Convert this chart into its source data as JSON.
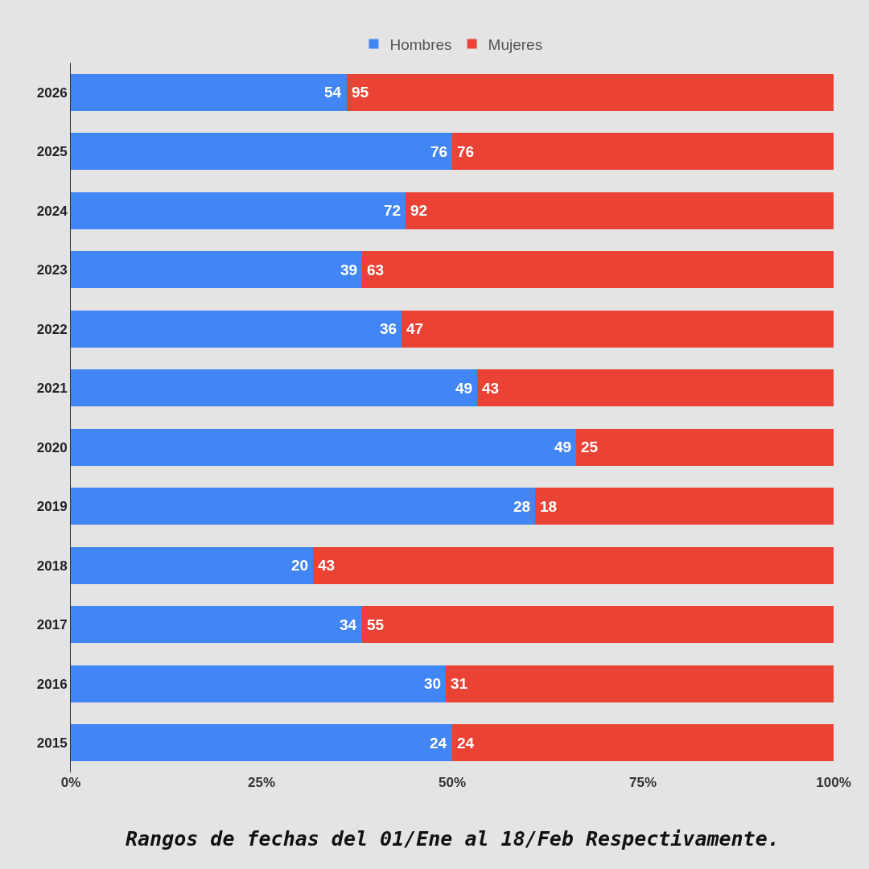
{
  "chart_data": {
    "type": "bar",
    "orientation": "horizontal",
    "stacked": true,
    "categories": [
      "2026",
      "2025",
      "2024",
      "2023",
      "2022",
      "2021",
      "2020",
      "2019",
      "2018",
      "2017",
      "2016",
      "2015"
    ],
    "series": [
      {
        "name": "Hombres",
        "color": "#4285f4",
        "values": [
          36.2,
          50,
          43.9,
          38.2,
          43.4,
          53.3,
          66.2,
          60.9,
          31.7,
          38.2,
          49.2,
          50
        ]
      },
      {
        "name": "Mujeres",
        "color": "#ea4335",
        "values": [
          63.8,
          50,
          56.1,
          61.8,
          56.6,
          46.7,
          33.8,
          39.1,
          68.3,
          61.8,
          50.8,
          50
        ]
      }
    ],
    "xlim": [
      0,
      100
    ],
    "xticks": [
      {
        "value": 0,
        "label": "0%"
      },
      {
        "value": 25,
        "label": "25%"
      },
      {
        "value": 50,
        "label": "50%"
      },
      {
        "value": 75,
        "label": "75%"
      },
      {
        "value": 100,
        "label": "100%"
      }
    ],
    "grid": false,
    "legend": "top",
    "annotations": [
      {
        "text": "54",
        "x": 36.2,
        "y": "2026"
      },
      {
        "text": "95",
        "x": 36.2,
        "y": "2026"
      },
      {
        "text": "76",
        "x": 50,
        "y": "2025"
      },
      {
        "text": "76",
        "x": 50,
        "y": "2025"
      },
      {
        "text": "72",
        "x": 43.9,
        "y": "2024"
      },
      {
        "text": "92",
        "x": 43.9,
        "y": "2024"
      },
      {
        "text": "39",
        "x": 38.2,
        "y": "2023"
      },
      {
        "text": "63",
        "x": 38.2,
        "y": "2023"
      },
      {
        "text": "36",
        "x": 43.4,
        "y": "2022"
      },
      {
        "text": "47",
        "x": 43.4,
        "y": "2022"
      },
      {
        "text": "49",
        "x": 53.3,
        "y": "2021"
      },
      {
        "text": "43",
        "x": 53.3,
        "y": "2021"
      },
      {
        "text": "49",
        "x": 66.2,
        "y": "2020"
      },
      {
        "text": "25",
        "x": 66.2,
        "y": "2020"
      },
      {
        "text": "28",
        "x": 60.9,
        "y": "2019"
      },
      {
        "text": "18",
        "x": 60.9,
        "y": "2019"
      },
      {
        "text": "20",
        "x": 31.7,
        "y": "2018"
      },
      {
        "text": "43",
        "x": 31.7,
        "y": "2018"
      },
      {
        "text": "34",
        "x": 38.2,
        "y": "2017"
      },
      {
        "text": "55",
        "x": 38.2,
        "y": "2017"
      },
      {
        "text": "30",
        "x": 49.2,
        "y": "2016"
      },
      {
        "text": "31",
        "x": 49.2,
        "y": "2016"
      },
      {
        "text": "24",
        "x": 50,
        "y": "2015"
      },
      {
        "text": "24",
        "x": 50,
        "y": "2015"
      },
      "Rangos de fechas del 01/Ene al 18/Feb Respectivamente."
    ]
  }
}
